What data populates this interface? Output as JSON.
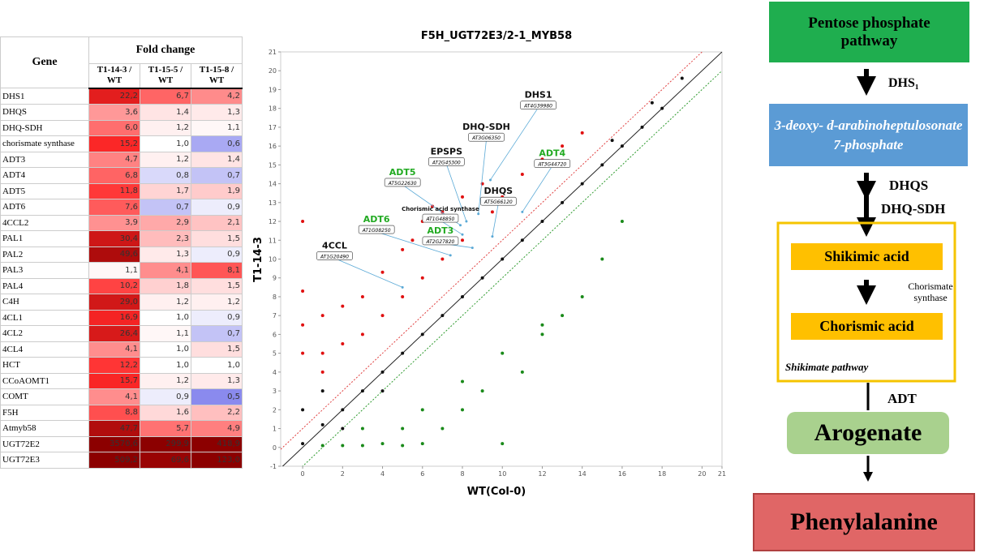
{
  "table": {
    "header": {
      "gene": "Gene",
      "group": "Fold change",
      "columns": [
        "T1-14-3 / WT",
        "T1-15-5 / WT",
        "T1-15-8 / WT"
      ]
    },
    "rows": [
      {
        "gene": "DHS1",
        "fc": [
          {
            "value": 22.2,
            "label": "22,2"
          },
          {
            "value": 6.7,
            "label": "6,7"
          },
          {
            "value": 4.2,
            "label": "4,2"
          }
        ]
      },
      {
        "gene": "DHQS",
        "fc": [
          {
            "value": 3.6,
            "label": "3,6"
          },
          {
            "value": 1.4,
            "label": "1,4"
          },
          {
            "value": 1.3,
            "label": "1,3"
          }
        ]
      },
      {
        "gene": "DHQ-SDH",
        "fc": [
          {
            "value": 6.0,
            "label": "6,0"
          },
          {
            "value": 1.2,
            "label": "1,2"
          },
          {
            "value": 1.1,
            "label": "1,1"
          }
        ]
      },
      {
        "gene": "chorismate synthase",
        "fc": [
          {
            "value": 15.2,
            "label": "15,2"
          },
          {
            "value": 1.0,
            "label": "1,0"
          },
          {
            "value": 0.6,
            "label": "0,6"
          }
        ]
      },
      {
        "gene": "ADT3",
        "fc": [
          {
            "value": 4.7,
            "label": "4,7"
          },
          {
            "value": 1.2,
            "label": "1,2"
          },
          {
            "value": 1.4,
            "label": "1,4"
          }
        ]
      },
      {
        "gene": "ADT4",
        "fc": [
          {
            "value": 6.8,
            "label": "6,8"
          },
          {
            "value": 0.8,
            "label": "0,8"
          },
          {
            "value": 0.7,
            "label": "0,7"
          }
        ]
      },
      {
        "gene": "ADT5",
        "fc": [
          {
            "value": 11.8,
            "label": "11,8"
          },
          {
            "value": 1.7,
            "label": "1,7"
          },
          {
            "value": 1.9,
            "label": "1,9"
          }
        ]
      },
      {
        "gene": "ADT6",
        "fc": [
          {
            "value": 7.6,
            "label": "7,6"
          },
          {
            "value": 0.7,
            "label": "0,7"
          },
          {
            "value": 0.9,
            "label": "0,9"
          }
        ]
      },
      {
        "gene": "4CCL2",
        "fc": [
          {
            "value": 3.9,
            "label": "3,9"
          },
          {
            "value": 2.9,
            "label": "2,9"
          },
          {
            "value": 2.1,
            "label": "2,1"
          }
        ]
      },
      {
        "gene": "PAL1",
        "fc": [
          {
            "value": 30.4,
            "label": "30,4"
          },
          {
            "value": 2.3,
            "label": "2,3"
          },
          {
            "value": 1.5,
            "label": "1,5"
          }
        ]
      },
      {
        "gene": "PAL2",
        "fc": [
          {
            "value": 49.6,
            "label": "49,6"
          },
          {
            "value": 1.3,
            "label": "1,3"
          },
          {
            "value": 0.9,
            "label": "0,9"
          }
        ]
      },
      {
        "gene": "PAL3",
        "fc": [
          {
            "value": 1.1,
            "label": "1,1"
          },
          {
            "value": 4.1,
            "label": "4,1"
          },
          {
            "value": 8.1,
            "label": "8,1"
          }
        ]
      },
      {
        "gene": "PAL4",
        "fc": [
          {
            "value": 10.2,
            "label": "10,2"
          },
          {
            "value": 1.8,
            "label": "1,8"
          },
          {
            "value": 1.5,
            "label": "1,5"
          }
        ]
      },
      {
        "gene": "C4H",
        "fc": [
          {
            "value": 29.0,
            "label": "29,0"
          },
          {
            "value": 1.2,
            "label": "1,2"
          },
          {
            "value": 1.2,
            "label": "1,2"
          }
        ]
      },
      {
        "gene": "4CL1",
        "fc": [
          {
            "value": 16.9,
            "label": "16,9"
          },
          {
            "value": 1.0,
            "label": "1,0"
          },
          {
            "value": 0.9,
            "label": "0,9"
          }
        ]
      },
      {
        "gene": "4CL2",
        "fc": [
          {
            "value": 26.4,
            "label": "26,4"
          },
          {
            "value": 1.1,
            "label": "1,1"
          },
          {
            "value": 0.7,
            "label": "0,7"
          }
        ]
      },
      {
        "gene": "4CL4",
        "fc": [
          {
            "value": 4.1,
            "label": "4,1"
          },
          {
            "value": 1.0,
            "label": "1,0"
          },
          {
            "value": 1.5,
            "label": "1,5"
          }
        ]
      },
      {
        "gene": "HCT",
        "fc": [
          {
            "value": 12.2,
            "label": "12,2"
          },
          {
            "value": 1.0,
            "label": "1,0"
          },
          {
            "value": 1.0,
            "label": "1,0"
          }
        ]
      },
      {
        "gene": "CCoAOMT1",
        "fc": [
          {
            "value": 15.7,
            "label": "15,7"
          },
          {
            "value": 1.2,
            "label": "1,2"
          },
          {
            "value": 1.3,
            "label": "1,3"
          }
        ]
      },
      {
        "gene": "COMT",
        "fc": [
          {
            "value": 4.1,
            "label": "4,1"
          },
          {
            "value": 0.9,
            "label": "0,9"
          },
          {
            "value": 0.5,
            "label": "0,5"
          }
        ]
      },
      {
        "gene": "F5H",
        "fc": [
          {
            "value": 8.8,
            "label": "8,8"
          },
          {
            "value": 1.6,
            "label": "1,6"
          },
          {
            "value": 2.2,
            "label": "2,2"
          }
        ]
      },
      {
        "gene": "Atmyb58",
        "fc": [
          {
            "value": 47.7,
            "label": "47,7"
          },
          {
            "value": 5.7,
            "label": "5,7"
          },
          {
            "value": 4.9,
            "label": "4,9"
          }
        ]
      },
      {
        "gene": "UGT72E2",
        "fc": [
          {
            "value": 3570.6,
            "label": "3570,6"
          },
          {
            "value": 299.9,
            "label": "299,9"
          },
          {
            "value": 418.9,
            "label": "418,9"
          }
        ]
      },
      {
        "gene": "UGT72E3",
        "fc": [
          {
            "value": 509.2,
            "label": "509,2"
          },
          {
            "value": 69.6,
            "label": "69,6"
          },
          {
            "value": 123.0,
            "label": "123,0"
          }
        ]
      }
    ]
  },
  "chart_data": {
    "type": "scatter",
    "title": "F5H_UGT72E3/2-1_MYB58",
    "xlabel": "WT(Col-0)",
    "ylabel": "T1-14-3",
    "xlim": [
      -1.1,
      21
    ],
    "ylim": [
      -1,
      21
    ],
    "xticks": [
      0,
      2,
      4,
      6,
      8,
      10,
      12,
      14,
      16,
      18,
      20,
      21
    ],
    "yticks": [
      -1,
      0,
      1,
      2,
      3,
      4,
      5,
      6,
      7,
      8,
      9,
      10,
      11,
      12,
      13,
      14,
      15,
      16,
      17,
      18,
      19,
      20,
      21
    ],
    "reference_lines": [
      {
        "offset": 1,
        "color": "#e04040"
      },
      {
        "offset": 0,
        "color": "#222222"
      },
      {
        "offset": -1,
        "color": "#2e9a2e"
      }
    ],
    "series": [
      {
        "name": "up",
        "color": "#e01010",
        "x": [
          0,
          0,
          0,
          0,
          1,
          1,
          1,
          2,
          2,
          3,
          3,
          4,
          4,
          5,
          5,
          6,
          6,
          7,
          7,
          8,
          8,
          9,
          10,
          11,
          12,
          13,
          14,
          5.5,
          6.5,
          9.5
        ],
        "values": [
          12,
          8.3,
          6.5,
          5,
          7,
          5,
          4,
          7.5,
          5.5,
          8,
          6,
          9.3,
          7,
          10.5,
          8,
          12,
          9,
          12.5,
          10,
          13.3,
          11,
          14,
          13.3,
          14.5,
          15.3,
          16,
          16.7,
          11,
          12.8,
          12.5
        ]
      },
      {
        "name": "mid",
        "color": "#111111",
        "x": [
          0,
          0,
          1,
          1,
          2,
          2,
          3,
          4,
          4,
          5,
          6,
          7,
          8,
          9,
          10,
          11,
          12,
          13,
          14,
          15,
          16,
          17,
          18,
          19,
          15.5,
          17.5
        ],
        "values": [
          0.2,
          2,
          1.2,
          3,
          2,
          1,
          3,
          4,
          3,
          5,
          6,
          7,
          8,
          9,
          10,
          11,
          12,
          13,
          14,
          15,
          16,
          17,
          18,
          19.6,
          16.3,
          18.3
        ]
      },
      {
        "name": "down",
        "color": "#1a8a1a",
        "x": [
          1,
          2,
          3,
          4,
          5,
          6,
          7,
          8,
          9,
          10,
          11,
          12,
          13,
          14,
          15,
          16,
          5,
          8,
          10,
          12,
          3,
          6
        ],
        "values": [
          0.1,
          0.1,
          0.1,
          0.2,
          0.1,
          0.2,
          1,
          2,
          3,
          0.2,
          4,
          6,
          7,
          8,
          10,
          12,
          1,
          3.5,
          5,
          6.5,
          1,
          2
        ]
      }
    ],
    "annotations": [
      {
        "label": "DHS1",
        "id": "AT4G39980",
        "color": "#111111",
        "x": 9.4,
        "y": 14.2
      },
      {
        "label": "DHQ-SDH",
        "id": "AT3G06350",
        "color": "#111111",
        "x": 8.8,
        "y": 12.4
      },
      {
        "label": "EPSPS",
        "id": "AT2G45300",
        "color": "#111111",
        "x": 8.2,
        "y": 12
      },
      {
        "label": "ADT5",
        "id": "AT5G22630",
        "color": "#22aa22",
        "x": 7.9,
        "y": 11.8
      },
      {
        "label": "Chorismic acid synthase",
        "id": "AT1G48850",
        "color": "#111111",
        "x": 8,
        "y": 11.3
      },
      {
        "label": "DHQS",
        "id": "AT5G66120",
        "color": "#111111",
        "x": 9.5,
        "y": 11.2
      },
      {
        "label": "ADT4",
        "id": "AT3G44720",
        "color": "#22aa22",
        "x": 11,
        "y": 12.5
      },
      {
        "label": "ADT6",
        "id": "AT1G08250",
        "color": "#22aa22",
        "x": 7.4,
        "y": 10.2
      },
      {
        "label": "ADT3",
        "id": "AT2G27820",
        "color": "#22aa22",
        "x": 8.5,
        "y": 10.6
      },
      {
        "label": "4CCL",
        "id": "AT1G20490",
        "color": "#111111",
        "x": 5,
        "y": 8.5
      }
    ]
  },
  "pathway": {
    "start": "Pentose phosphate pathway",
    "enzyme1": "DHS₁",
    "dahp": "3-deoxy- d-arabinoheptulosonate 7-phosphate",
    "enzyme2": "DHQS",
    "enzyme3": "DHQ-SDH",
    "shikimate": "Shikimic acid",
    "enzyme4": "Chorismate synthase",
    "chorismate": "Chorismic acid",
    "module": "Shikimate pathway",
    "enzyme5": "ADT",
    "arogenate": "Arogenate",
    "end": "Phenylalanine"
  }
}
